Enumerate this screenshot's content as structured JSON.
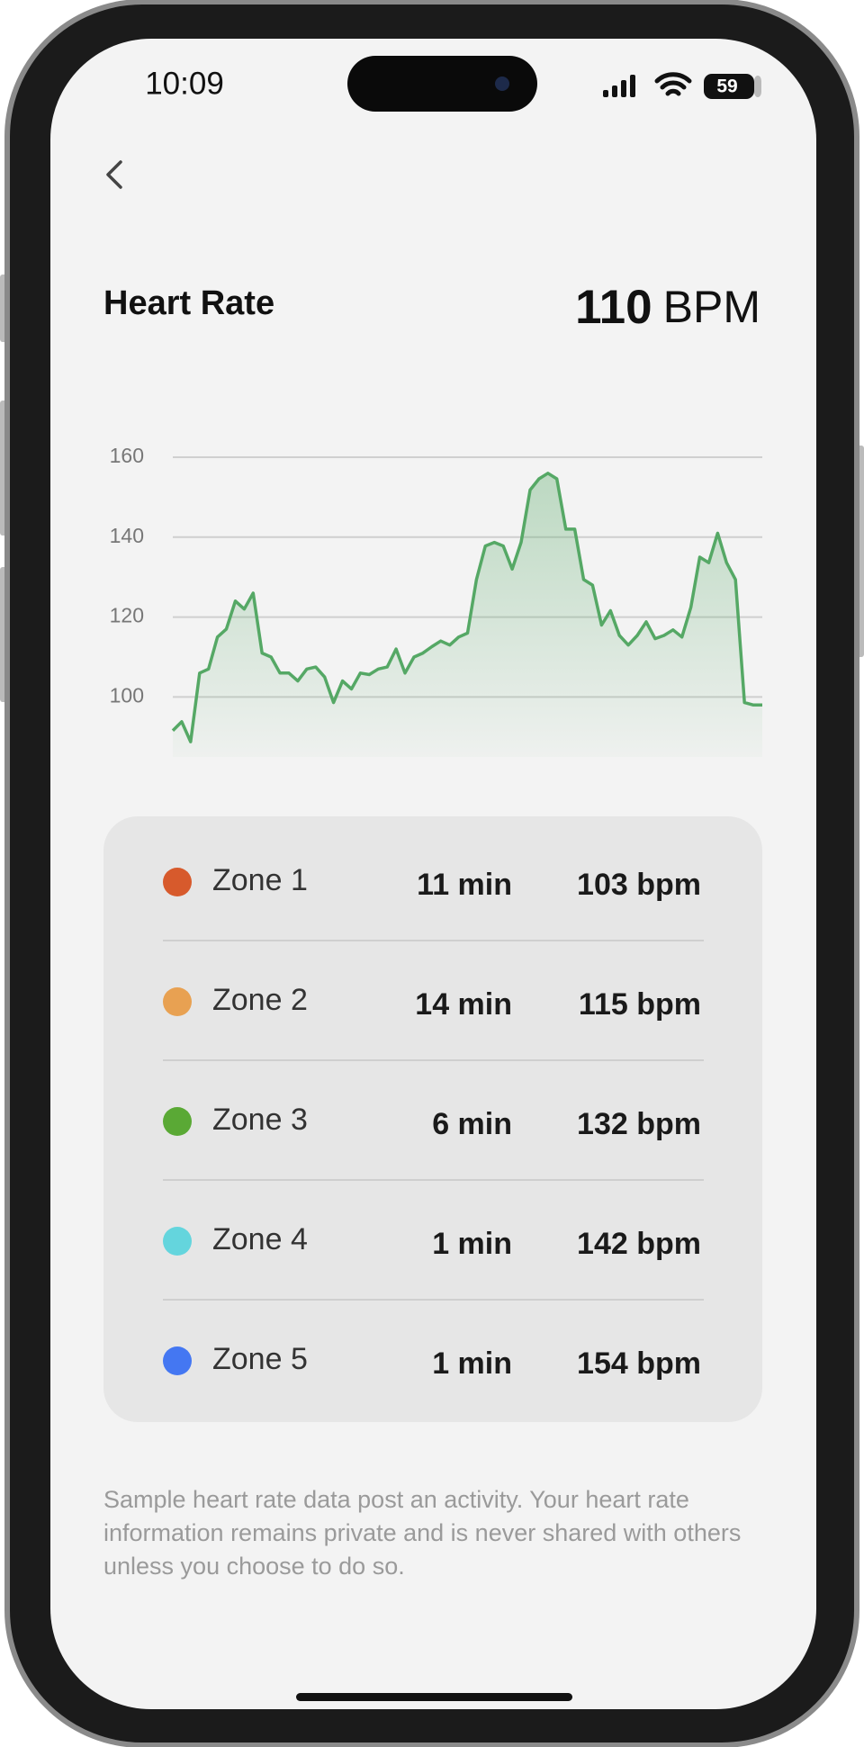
{
  "status_bar": {
    "time": "10:09",
    "battery": "59"
  },
  "header": {
    "title": "Heart Rate",
    "value": "110",
    "unit": "BPM"
  },
  "chart_data": {
    "type": "line",
    "color": "#55a865",
    "values": [
      91.6,
      93.8,
      88.8,
      106,
      107,
      115,
      117,
      124,
      122,
      126,
      111,
      110,
      106,
      106,
      104,
      107,
      107.5,
      105,
      98.6,
      104,
      102,
      106,
      105.6,
      107,
      107.5,
      112,
      106,
      110,
      111,
      112.6,
      114,
      113,
      115,
      116,
      129.4,
      137.8,
      138.7,
      137.8,
      132,
      138.7,
      151.8,
      154.6,
      156,
      154.6,
      142,
      142,
      129.4,
      128,
      118,
      121.6,
      115.4,
      113,
      115.4,
      118.8,
      114.6,
      115.4,
      116.8,
      115,
      122.4,
      135,
      133.6,
      141,
      133.6,
      129.4,
      98.6,
      98,
      98
    ],
    "ylim": [
      85,
      160
    ],
    "yticks": [
      100,
      120,
      140,
      160
    ],
    "grid": true
  },
  "zones": {
    "rows": [
      {
        "color": "#d75a2c",
        "name": "Zone 1",
        "duration": "11 min",
        "average": "103 bpm"
      },
      {
        "color": "#e8a152",
        "name": "Zone 2",
        "duration": "14 min",
        "average": "115 bpm"
      },
      {
        "color": "#5aa935",
        "name": "Zone 3",
        "duration": "6 min",
        "average": "132 bpm"
      },
      {
        "color": "#64d5dd",
        "name": "Zone 4",
        "duration": "1 min",
        "average": "142 bpm"
      },
      {
        "color": "#4477f2",
        "name": "Zone 5",
        "duration": "1 min",
        "average": "154 bpm"
      }
    ]
  },
  "footnote": "Sample heart rate data post an activity. Your heart rate information remains private and is never shared with others unless you choose to do so."
}
